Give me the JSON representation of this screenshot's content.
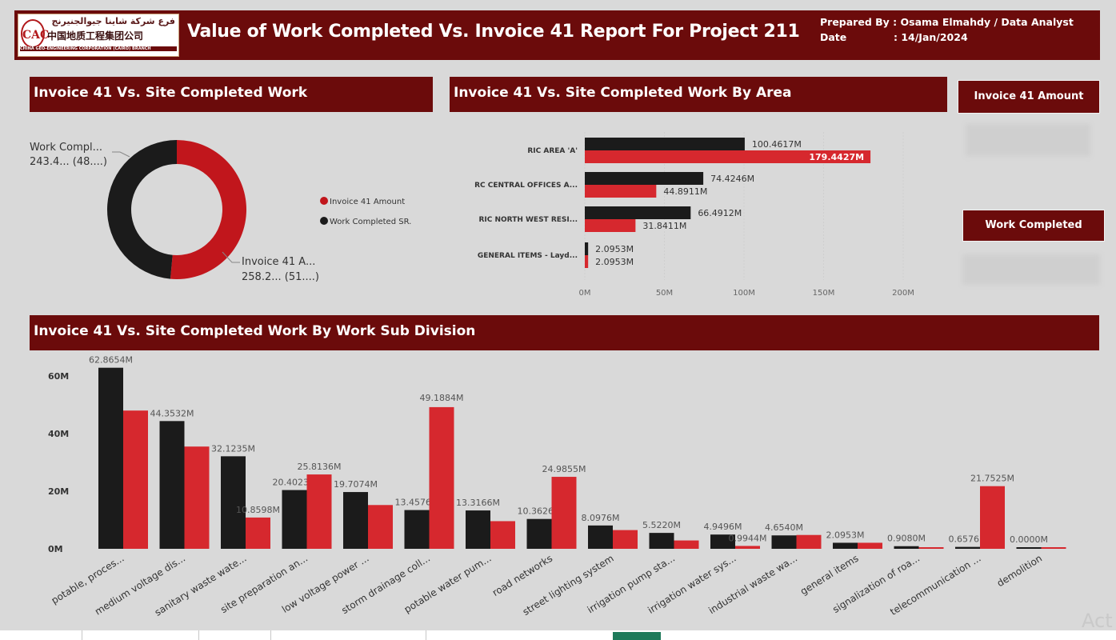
{
  "header": {
    "logo_arabic": "فرع شركة شاينا جيوالجنيرنج",
    "logo_chinese": "中国地质工程集团公司",
    "logo_mark": "CAC",
    "logo_english": "CHINA GEO-ENGINEERING CORPORATION (CAIRO) BRANCH",
    "title": "Value of Work Completed Vs. Invoice 41 Report For Project 211",
    "prepared_by": "Prepared By : Osama Elmahdy /  Data Analyst",
    "date_label": "Date",
    "date_value": ": 14/Jan/2024"
  },
  "panels": {
    "donut_title": "Invoice 41 Vs. Site Completed Work",
    "area_title": "Invoice 41 Vs. Site Completed Work By Area",
    "sub_title": "Invoice 41 Vs. Site Completed Work By Work Sub Division"
  },
  "kpi": {
    "invoice_label": "Invoice 41 Amount",
    "work_label": "Work Completed"
  },
  "colors": {
    "maroon": "#6b0b0b",
    "black": "#1b1b1b",
    "red": "#d6282e",
    "red_donut": "#c1161c"
  },
  "watermark": "Act",
  "chart_data": [
    {
      "type": "pie",
      "subtype": "donut",
      "legend": [
        "Invoice 41 Amount",
        "Work Completed SR."
      ],
      "labels": [
        {
          "name": "Work Compl...",
          "value_text": "243.4... (48....)"
        },
        {
          "name": "Invoice 41 A...",
          "value_text": "258.2... (51....)"
        }
      ],
      "values": [
        243.4,
        258.2
      ],
      "series_colors": [
        "#1b1b1b",
        "#c1161c"
      ]
    },
    {
      "type": "bar",
      "orientation": "horizontal",
      "categories": [
        "RIC AREA 'A'",
        "RC CENTRAL OFFICES A...",
        "RIC NORTH WEST RESI...",
        "GENERAL ITEMS - Layd..."
      ],
      "series": [
        {
          "name": "Work Completed SR.",
          "values": [
            100.4617,
            74.4246,
            66.4912,
            2.0953
          ],
          "labels": [
            "100.4617M",
            "74.4246M",
            "66.4912M",
            "2.0953M"
          ]
        },
        {
          "name": "Invoice 41 Amount",
          "values": [
            179.4427,
            44.8911,
            31.8411,
            2.0953
          ],
          "labels": [
            "179.4427M",
            "44.8911M",
            "31.8411M",
            "2.0953M"
          ]
        }
      ],
      "xlim": [
        0,
        200
      ],
      "xticks": [
        "0M",
        "50M",
        "100M",
        "150M",
        "200M"
      ]
    },
    {
      "type": "bar",
      "categories": [
        "potable, proces...",
        "medium voltage dis...",
        "sanitary waste wate...",
        "site preparation an...",
        "low voltage power ...",
        "storm drainage coll...",
        "potable water pum...",
        "road networks",
        "street lighting system",
        "irrigation pump sta...",
        "irrigation water sys...",
        "industrial waste wa...",
        "general items",
        "signalization of roa...",
        "telecommunication ...",
        "demolition"
      ],
      "series": [
        {
          "name": "Work Completed SR.",
          "values": [
            62.8654,
            44.3532,
            32.1235,
            20.4023,
            19.7074,
            13.4576,
            13.3166,
            10.3626,
            8.0976,
            5.522,
            4.9496,
            4.654,
            2.0953,
            0.908,
            0.6576,
            0.0
          ],
          "labels": [
            "62.8654M",
            "44.3532M",
            "32.1235M",
            "20.4023M",
            "19.7074M",
            "13.4576M",
            "13.3166M",
            "10.3626M",
            "8.0976M",
            "5.5220M",
            "4.9496M",
            "4.6540M",
            "2.0953M",
            "0.9080M",
            "0.6576M",
            "0.0000M"
          ]
        },
        {
          "name": "Invoice 41 Amount",
          "values": [
            48.0,
            35.5,
            10.8598,
            25.8136,
            15.2,
            49.1884,
            9.6,
            24.9855,
            6.5,
            2.9,
            0.9944,
            4.8,
            2.0953,
            0.5,
            21.7525,
            0.5
          ],
          "labels": [
            "",
            "",
            "10.8598M",
            "25.8136M",
            "",
            "",
            "",
            "24.9855M",
            "",
            "",
            "0.9944M",
            "",
            "",
            "",
            "21.7525M",
            ""
          ]
        }
      ],
      "ylim": [
        0,
        70
      ],
      "yticks": [
        "0M",
        "20M",
        "40M",
        "60M"
      ],
      "label_series_index": [
        0,
        0,
        0,
        0,
        0,
        0,
        0,
        0,
        0,
        0,
        0,
        0,
        0,
        0,
        0,
        0
      ],
      "extra_labels": [
        "49.1884M"
      ]
    }
  ]
}
